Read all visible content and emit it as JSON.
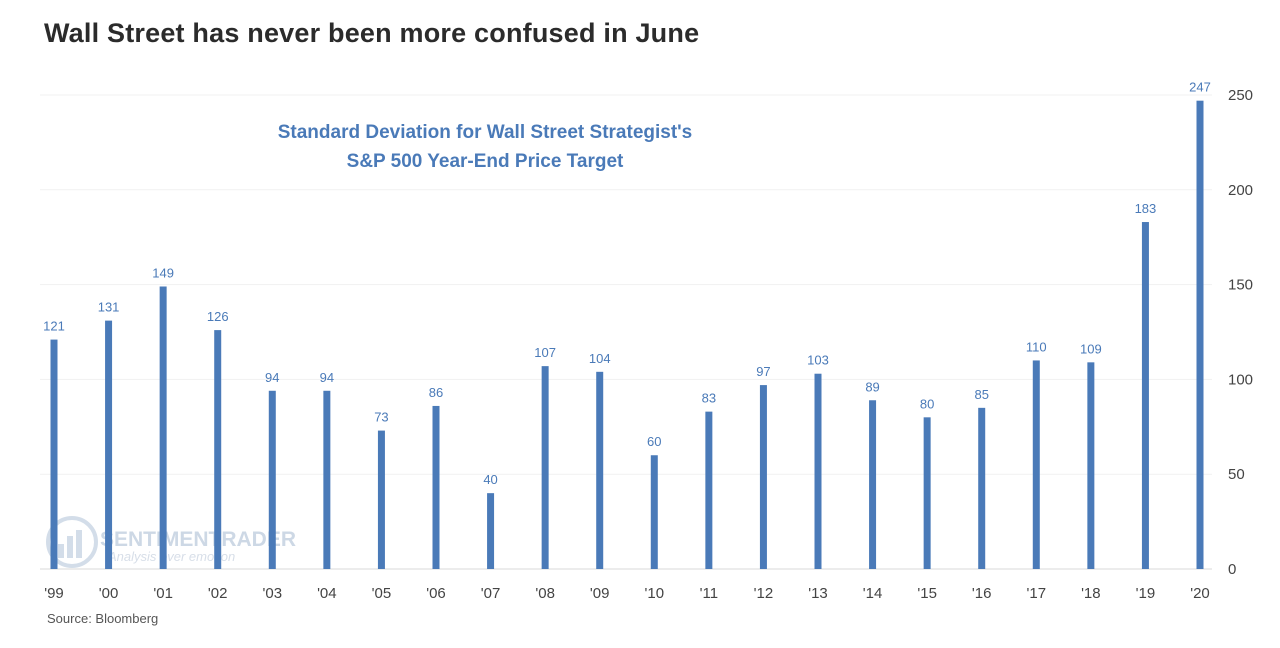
{
  "headline": "Wall Street has never been more confused in June",
  "source_note": "Source: Bloomberg",
  "watermark": {
    "brand": "SENTIMENTRADER",
    "tagline": "Analysis over emotion"
  },
  "chart_data": {
    "type": "bar",
    "subtitle_lines": [
      "Standard Deviation for Wall Street Strategist's",
      "S&P 500 Year-End Price Target"
    ],
    "categories": [
      "'99",
      "'00",
      "'01",
      "'02",
      "'03",
      "'04",
      "'05",
      "'06",
      "'07",
      "'08",
      "'09",
      "'10",
      "'11",
      "'12",
      "'13",
      "'14",
      "'15",
      "'16",
      "'17",
      "'18",
      "'19",
      "'20"
    ],
    "values": [
      121,
      131,
      149,
      126,
      94,
      94,
      73,
      86,
      40,
      107,
      104,
      60,
      83,
      97,
      103,
      89,
      80,
      85,
      110,
      109,
      183,
      247
    ],
    "ylim": [
      0,
      250
    ],
    "y_ticks": [
      0,
      50,
      100,
      150,
      200,
      250
    ],
    "y_axis_side": "right",
    "grid": true,
    "bar_color": "#4a7ab8"
  }
}
